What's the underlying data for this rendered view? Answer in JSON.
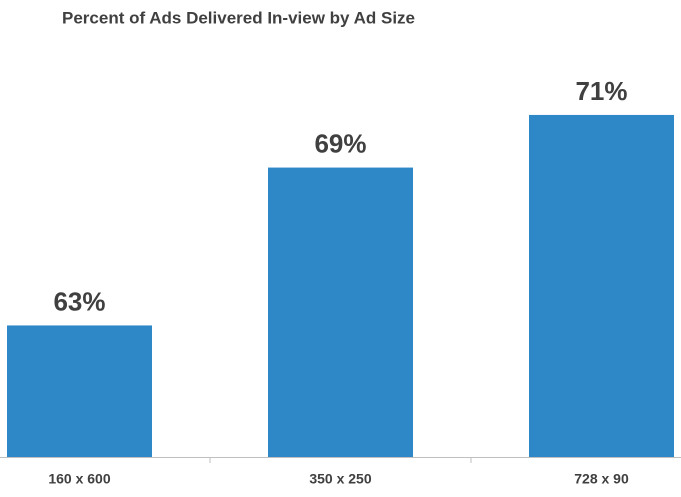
{
  "chart_data": {
    "type": "bar",
    "title": "Percent of Ads Delivered In-view by Ad Size",
    "categories": [
      "160 x 600",
      "350 x 250",
      "728 x 90"
    ],
    "values": [
      63,
      69,
      71
    ],
    "value_labels": [
      "63%",
      "69%",
      "71%"
    ],
    "color": "#2e88c8",
    "ylim": [
      58,
      74
    ]
  }
}
